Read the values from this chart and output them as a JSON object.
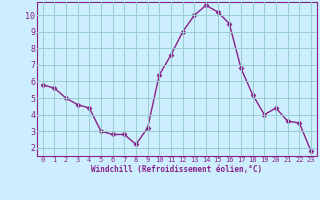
{
  "x": [
    0,
    1,
    2,
    3,
    4,
    5,
    6,
    7,
    8,
    9,
    10,
    11,
    12,
    13,
    14,
    15,
    16,
    17,
    18,
    19,
    20,
    21,
    22,
    23
  ],
  "y": [
    5.8,
    5.6,
    5.0,
    4.6,
    4.4,
    3.0,
    2.8,
    2.8,
    2.2,
    3.2,
    6.4,
    7.6,
    9.0,
    10.0,
    10.6,
    10.2,
    9.5,
    6.8,
    5.2,
    4.0,
    4.4,
    3.6,
    3.5,
    1.8
  ],
  "line_color": "#882288",
  "marker": "D",
  "marker_size": 2.5,
  "bg_color": "#cceeff",
  "grid_color": "#99cccc",
  "xlabel": "Windchill (Refroidissement éolien,°C)",
  "xlim": [
    -0.5,
    23.5
  ],
  "ylim": [
    1.5,
    10.8
  ],
  "yticks": [
    2,
    3,
    4,
    5,
    6,
    7,
    8,
    9,
    10
  ],
  "xticks": [
    0,
    1,
    2,
    3,
    4,
    5,
    6,
    7,
    8,
    9,
    10,
    11,
    12,
    13,
    14,
    15,
    16,
    17,
    18,
    19,
    20,
    21,
    22,
    23
  ],
  "label_color": "#882288",
  "tick_color": "#882288",
  "axis_color": "#882288",
  "font_family": "monospace",
  "xlabel_fontsize": 5.5,
  "tick_fontsize_x": 5.0,
  "tick_fontsize_y": 6.0
}
